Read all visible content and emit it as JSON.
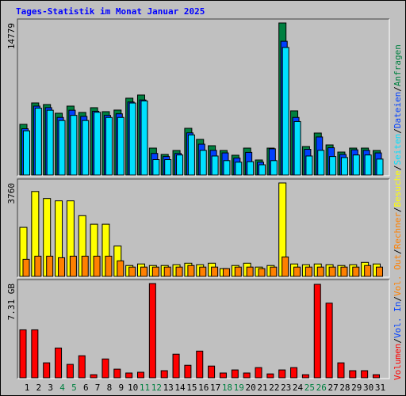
{
  "title": "Tages-Statistik im Monat Januar 2025",
  "legend_separator": "/",
  "chart_data": [
    {
      "type": "bar",
      "ylim": [
        0,
        14779
      ],
      "yticks": [
        14779
      ],
      "series": [
        {
          "name": "Anfragen",
          "color": "#008040",
          "values": [
            4928,
            7007,
            6853,
            6006,
            6699,
            6083,
            6545,
            6160,
            6314,
            7469,
            7777,
            2618,
            2002,
            2387,
            4543,
            3465,
            2849,
            2387,
            1925,
            2618,
            1463,
            2618,
            14779,
            6237,
            2772,
            4081,
            2926,
            2233,
            2618,
            2618,
            2387
          ]
        },
        {
          "name": "Dateien",
          "color": "#0040ff",
          "values": [
            4500,
            6700,
            6550,
            5600,
            6300,
            5700,
            6200,
            5800,
            5950,
            7100,
            7300,
            2100,
            1800,
            2100,
            4100,
            3000,
            2400,
            2150,
            1650,
            2200,
            1250,
            2550,
            13000,
            5600,
            2500,
            3700,
            2650,
            2000,
            2450,
            2400,
            2150
          ]
        },
        {
          "name": "Seiten",
          "color": "#00e0ff",
          "values": [
            4300,
            6500,
            6300,
            5300,
            5800,
            5300,
            6100,
            5600,
            5600,
            7000,
            7200,
            1500,
            1500,
            1950,
            3900,
            2400,
            1850,
            1400,
            1250,
            1300,
            1000,
            1400,
            12400,
            5200,
            1850,
            2400,
            1800,
            1700,
            1950,
            1950,
            1550
          ]
        }
      ]
    },
    {
      "type": "bar",
      "ylim": [
        0,
        3760
      ],
      "yticks": [
        3760
      ],
      "series": [
        {
          "name": "Besuche",
          "color": "#ffff00",
          "values": [
            1974,
            3416,
            3133,
            3040,
            3040,
            2444,
            2100,
            2100,
            1222,
            439,
            501,
            439,
            439,
            470,
            532,
            470,
            532,
            313,
            439,
            532,
            376,
            439,
            3760,
            501,
            470,
            501,
            470,
            439,
            470,
            564,
            501
          ]
        },
        {
          "name": "Rechner",
          "color": "#ff8000",
          "values": [
            689,
            815,
            815,
            752,
            815,
            815,
            815,
            815,
            626,
            376,
            376,
            376,
            376,
            376,
            439,
            376,
            376,
            313,
            376,
            376,
            313,
            376,
            783,
            376,
            376,
            376,
            376,
            376,
            376,
            439,
            376
          ]
        }
      ]
    },
    {
      "type": "bar",
      "ylim": [
        0,
        7.31
      ],
      "yticks": [
        {
          "value": 7.31,
          "label": "7.31 GB"
        }
      ],
      "categories": [
        "1",
        "2",
        "3",
        "4",
        "5",
        "6",
        "7",
        "8",
        "9",
        "10",
        "11",
        "12",
        "13",
        "14",
        "15",
        "16",
        "17",
        "18",
        "19",
        "20",
        "21",
        "22",
        "23",
        "24",
        "25",
        "26",
        "27",
        "28",
        "29",
        "30",
        "31"
      ],
      "category_colors": [
        "#000000",
        "#000000",
        "#000000",
        "#008040",
        "#008040",
        "#000000",
        "#000000",
        "#000000",
        "#000000",
        "#000000",
        "#008040",
        "#008040",
        "#000000",
        "#000000",
        "#000000",
        "#000000",
        "#000000",
        "#008040",
        "#008040",
        "#000000",
        "#000000",
        "#000000",
        "#000000",
        "#000000",
        "#008040",
        "#008040",
        "#000000",
        "#000000",
        "#000000",
        "#000000",
        "#000000"
      ],
      "series": [
        {
          "name": "Volumen",
          "color": "#ff0000",
          "values": [
            3.72,
            3.72,
            1.16,
            2.31,
            1.04,
            1.71,
            0.24,
            1.46,
            0.67,
            0.37,
            0.43,
            7.31,
            0.55,
            1.83,
            0.97,
            2.07,
            0.91,
            0.37,
            0.61,
            0.37,
            0.79,
            0.3,
            0.61,
            0.79,
            0.24,
            7.25,
            5.79,
            1.16,
            0.55,
            0.55,
            0.24
          ]
        }
      ],
      "legend_extra": [
        {
          "name": "Vol. In",
          "color": "#0040ff"
        },
        {
          "name": "Vol. Out",
          "color": "#ff8000"
        }
      ]
    }
  ]
}
